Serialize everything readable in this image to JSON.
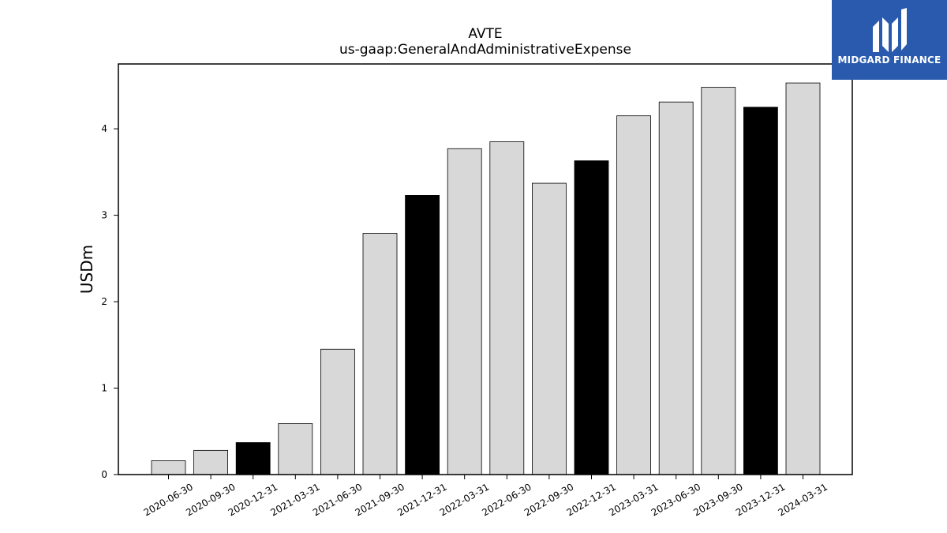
{
  "brand": {
    "name": "MIDGARD FINANCE",
    "background_color": "#2a5aad",
    "icon": "midgard-logo-icon"
  },
  "chart_data": {
    "type": "bar",
    "title": "AVTE",
    "subtitle": "us-gaap:GeneralAndAdministrativeExpense",
    "xlabel": "",
    "ylabel": "USDm",
    "ylim": [
      0,
      4.75
    ],
    "yticks": [
      0,
      1,
      2,
      3,
      4
    ],
    "grid": false,
    "legend": "none",
    "colors": {
      "default": "#d8d8d8",
      "highlight": "#000000",
      "edge": "#000000"
    },
    "categories": [
      "2020-06-30",
      "2020-09-30",
      "2020-12-31",
      "2021-03-31",
      "2021-06-30",
      "2021-09-30",
      "2021-12-31",
      "2022-03-31",
      "2022-06-30",
      "2022-09-30",
      "2022-12-31",
      "2023-03-31",
      "2023-06-30",
      "2023-09-30",
      "2023-12-31",
      "2024-03-31"
    ],
    "values": [
      0.16,
      0.28,
      0.37,
      0.59,
      1.45,
      2.79,
      3.23,
      3.77,
      3.85,
      3.37,
      3.63,
      4.15,
      4.31,
      4.48,
      4.25,
      4.53
    ],
    "highlight": [
      false,
      false,
      true,
      false,
      false,
      false,
      true,
      false,
      false,
      false,
      true,
      false,
      false,
      false,
      true,
      false
    ]
  }
}
